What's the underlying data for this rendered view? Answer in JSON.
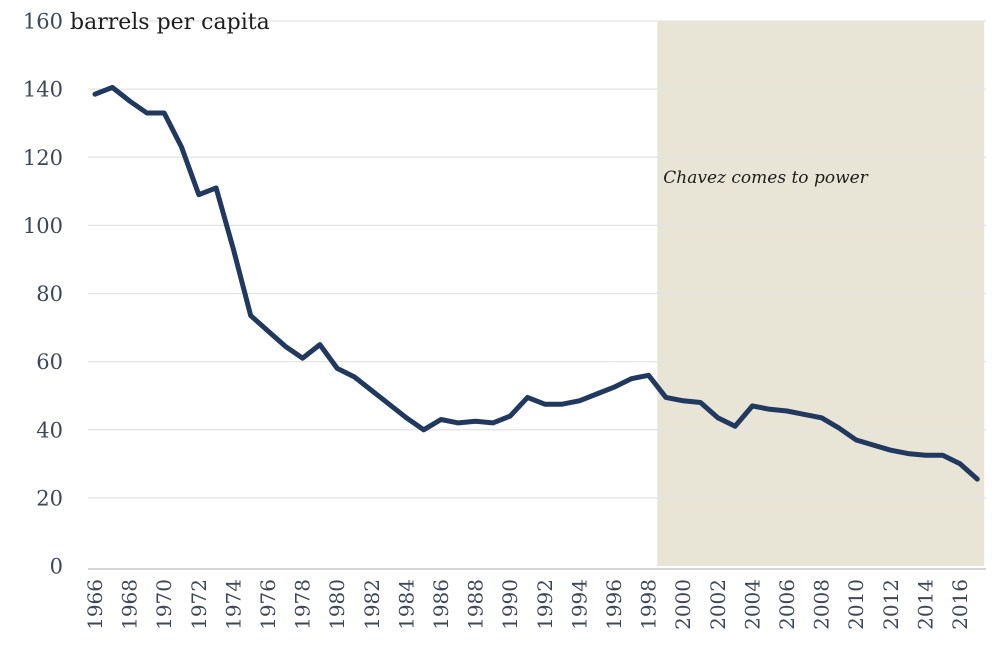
{
  "chart_data": {
    "type": "line",
    "title": "barrels per capita",
    "xlabel": "",
    "ylabel": "barrels per capita",
    "x": [
      1966,
      1967,
      1968,
      1969,
      1970,
      1971,
      1972,
      1973,
      1974,
      1975,
      1976,
      1977,
      1978,
      1979,
      1980,
      1981,
      1982,
      1983,
      1984,
      1985,
      1986,
      1987,
      1988,
      1989,
      1990,
      1991,
      1992,
      1993,
      1994,
      1995,
      1996,
      1997,
      1998,
      1999,
      2000,
      2001,
      2002,
      2003,
      2004,
      2005,
      2006,
      2007,
      2008,
      2009,
      2010,
      2011,
      2012,
      2013,
      2014,
      2015,
      2016,
      2017
    ],
    "series": [
      {
        "name": "barrels per capita",
        "values": [
          138.5,
          140.5,
          136.5,
          133,
          133,
          123,
          109,
          111,
          93,
          73.5,
          69,
          64.5,
          61,
          65,
          58,
          55.5,
          51.5,
          47.5,
          43.5,
          40,
          43,
          42,
          42.5,
          42,
          44,
          49.5,
          47.5,
          47.5,
          48.5,
          50.5,
          52.5,
          55,
          56,
          49.5,
          48.5,
          48,
          43.5,
          41,
          47,
          46,
          45.5,
          44.5,
          43.5,
          40.5,
          37,
          35.5,
          34,
          33,
          32.5,
          32.5,
          30,
          25.5
        ]
      }
    ],
    "xlim": [
      1966,
      2017.5
    ],
    "ylim": [
      0,
      160
    ],
    "yticks": [
      0,
      20,
      40,
      60,
      80,
      100,
      120,
      140,
      160
    ],
    "xticks": [
      1966,
      1968,
      1970,
      1972,
      1974,
      1976,
      1978,
      1980,
      1982,
      1984,
      1986,
      1988,
      1990,
      1992,
      1994,
      1996,
      1998,
      2000,
      2002,
      2004,
      2006,
      2008,
      2010,
      2012,
      2014,
      2016
    ],
    "grid": "horizontal gridlines on",
    "legend": "none",
    "annotation": {
      "text": "Chavez comes to power",
      "x": 1998.85,
      "y": 112.4
    },
    "shaded_region": {
      "start_x": 1998.5,
      "end_x": 2017.4
    }
  },
  "colors": {
    "line": "#21395e",
    "shading": "#e9e5d6",
    "gridline": "#e3e3e3",
    "axis_line": "#c6c6c6",
    "tick_text": "#3d4757",
    "title_text": "#1d1d1d",
    "annotation_text": "#1d1d1d",
    "background": "#ffffff"
  }
}
